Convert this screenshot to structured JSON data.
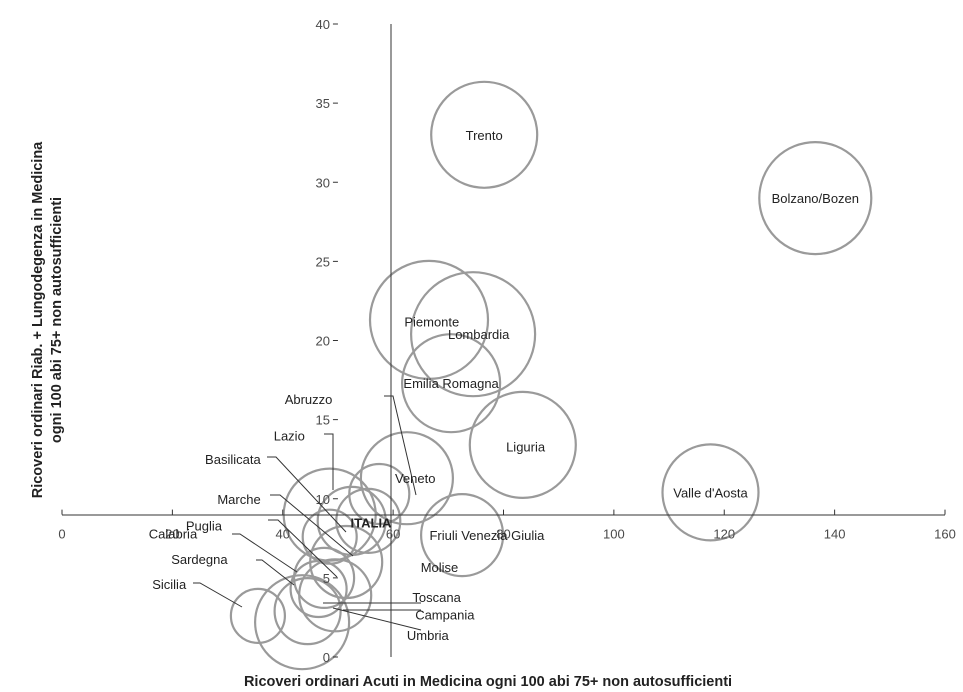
{
  "chart_data": {
    "type": "bubble",
    "xlabel": "Ricoveri ordinari Acuti in Medicina ogni 100 abi 75+ non autosufficienti",
    "ylabel_lines": [
      "Ricoveri ordinari Riab. + Lungodegenza in Medicina",
      "ogni 100 abi 75+ non autosufficienti"
    ],
    "xlim": [
      0,
      160
    ],
    "ylim": [
      0,
      40
    ],
    "x_ticks": [
      0,
      20,
      40,
      60,
      80,
      100,
      120,
      140,
      160
    ],
    "y_ticks": [
      0,
      5,
      10,
      15,
      20,
      25,
      30,
      35,
      40
    ],
    "x_axis_crossing_y": 9,
    "y_axis_crossing_x": 50,
    "bubble_size_unit_radius": 6,
    "points": [
      {
        "name": "Trento",
        "x": 76.5,
        "y": 33,
        "r": 53
      },
      {
        "name": "Bolzano/Bozen",
        "x": 136.5,
        "y": 29,
        "r": 56
      },
      {
        "name": "Piemonte",
        "x": 66.5,
        "y": 21.3,
        "r": 59
      },
      {
        "name": "Lombardia",
        "x": 74.5,
        "y": 20.4,
        "r": 62
      },
      {
        "name": "Emilia Romagna",
        "x": 70.5,
        "y": 17.3,
        "r": 49
      },
      {
        "name": "Liguria",
        "x": 83.5,
        "y": 13.4,
        "r": 53
      },
      {
        "name": "Valle d'Aosta",
        "x": 117.5,
        "y": 10.4,
        "r": 48
      },
      {
        "name": "Veneto",
        "x": 62.5,
        "y": 11.3,
        "r": 46
      },
      {
        "name": "Friuli Venezia Giulia",
        "x": 72.5,
        "y": 7.7,
        "r": 41
      },
      {
        "name": "ITALIA",
        "x": 52.5,
        "y": 10.2,
        "r": 0
      },
      {
        "name": "Abruzzo",
        "x": 57.5,
        "y": 10.3,
        "r": 30
      },
      {
        "name": "Lazio",
        "x": 48.5,
        "y": 9,
        "r": 46
      },
      {
        "name": "Basilicata",
        "x": 55.5,
        "y": 8.6,
        "r": 32
      },
      {
        "name": "Marche",
        "x": 52.5,
        "y": 8.6,
        "r": 34
      },
      {
        "name": "Puglia",
        "x": 48.5,
        "y": 7.6,
        "r": 27
      },
      {
        "name": "Molise",
        "x": 51.5,
        "y": 6,
        "r": 36
      },
      {
        "name": "Toscana",
        "x": 47.5,
        "y": 5,
        "r": 30
      },
      {
        "name": "Campania",
        "x": 46.5,
        "y": 4.3,
        "r": 28
      },
      {
        "name": "Calabria",
        "x": 49.5,
        "y": 3.9,
        "r": 36
      },
      {
        "name": "Umbria",
        "x": 44.5,
        "y": 2.9,
        "r": 33
      },
      {
        "name": "Sardegna",
        "x": 43.5,
        "y": 2.2,
        "r": 47
      },
      {
        "name": "Sicilia",
        "x": 35.5,
        "y": 2.6,
        "r": 27
      }
    ],
    "labels": [
      {
        "name": "Trento",
        "x": 76.5,
        "y": 33.0
      },
      {
        "name": "Bolzano/Bozen",
        "x": 136.5,
        "y": 29.0
      },
      {
        "name": "Piemonte",
        "x": 67.0,
        "y": 21.2
      },
      {
        "name": "Lombardia",
        "x": 75.5,
        "y": 20.4
      },
      {
        "name": "Emilia Romagna",
        "x": 70.5,
        "y": 17.3
      },
      {
        "name": "Liguria",
        "x": 84.0,
        "y": 13.3
      },
      {
        "name": "Valle d'Aosta",
        "x": 117.5,
        "y": 10.4
      },
      {
        "name": "Veneto",
        "x": 64.0,
        "y": 11.3
      },
      {
        "name": "Friuli Venezia Giulia",
        "x": 77.0,
        "y": 7.7
      },
      {
        "name": "ITALIA",
        "x": 56.0,
        "y": 8.5
      },
      {
        "name": "Molise",
        "x": 65.0,
        "y": 5.7
      },
      {
        "name": "Toscana",
        "x": 63.5,
        "y": 3.8
      },
      {
        "name": "Campania",
        "x": 64.0,
        "y": 2.7
      },
      {
        "name": "Umbria",
        "x": 62.5,
        "y": 1.4
      },
      {
        "name": "Abruzzo",
        "x": 49.0,
        "y": 16.3
      },
      {
        "name": "Lazio",
        "x": 44.0,
        "y": 14.0
      },
      {
        "name": "Basilicata",
        "x": 36.0,
        "y": 12.5
      },
      {
        "name": "Marche",
        "x": 36.0,
        "y": 10.0
      },
      {
        "name": "Puglia",
        "x": 29.0,
        "y": 8.3
      },
      {
        "name": "Calabria",
        "x": 24.5,
        "y": 7.8
      },
      {
        "name": "Sardegna",
        "x": 30.0,
        "y": 6.2
      },
      {
        "name": "Sicilia",
        "x": 22.5,
        "y": 4.6
      }
    ]
  }
}
